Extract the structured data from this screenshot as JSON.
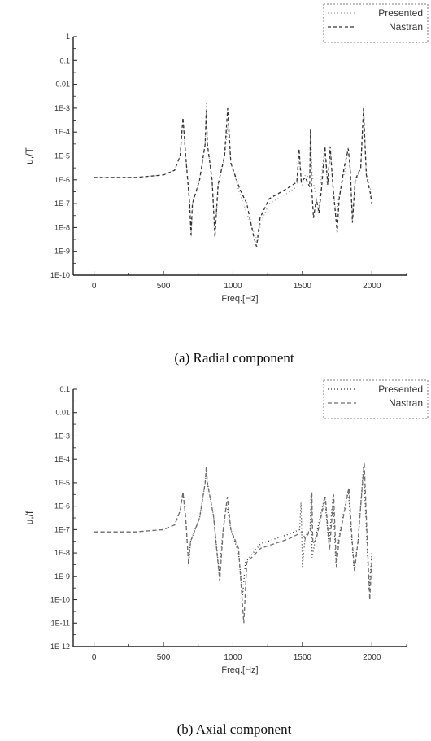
{
  "chart_data": [
    {
      "type": "line",
      "caption": "(a) Radial component",
      "xlabel": "Freq.[Hz]",
      "ylabel": "u,/T",
      "yscale": "log",
      "xlim": [
        -150,
        2250
      ],
      "ylim_exp": [
        -10,
        0
      ],
      "x_ticks": [
        "0",
        "500",
        "1000",
        "1500",
        "2000"
      ],
      "x_tick_values": [
        0,
        500,
        1000,
        1500,
        2000
      ],
      "y_ticks": [
        "1",
        "0.1",
        "0.01",
        "1E-3",
        "1E-4",
        "1E-5",
        "1E-6",
        "1E-7",
        "1E-8",
        "1E-9",
        "1E-10"
      ],
      "legend_position": "top-right",
      "series": [
        {
          "name": "Presented",
          "dash": "1,3",
          "color": "#9a9a9a",
          "points": [
            [
              0,
              -5.9
            ],
            [
              300,
              -5.9
            ],
            [
              500,
              -5.8
            ],
            [
              580,
              -5.6
            ],
            [
              620,
              -5.0
            ],
            [
              640,
              -3.5
            ],
            [
              660,
              -5.0
            ],
            [
              690,
              -7.0
            ],
            [
              700,
              -8.4
            ],
            [
              710,
              -7.0
            ],
            [
              760,
              -6.0
            ],
            [
              800,
              -4.5
            ],
            [
              808,
              -2.8
            ],
            [
              816,
              -4.5
            ],
            [
              850,
              -6.0
            ],
            [
              872,
              -8.3
            ],
            [
              895,
              -6.2
            ],
            [
              940,
              -5.0
            ],
            [
              962,
              -3.8
            ],
            [
              985,
              -5.3
            ],
            [
              1050,
              -6.6
            ],
            [
              1100,
              -7.4
            ],
            [
              1150,
              -8.2
            ],
            [
              1180,
              -8.6
            ],
            [
              1200,
              -7.8
            ],
            [
              1260,
              -7.0
            ],
            [
              1380,
              -6.6
            ],
            [
              1460,
              -6.3
            ],
            [
              1478,
              -4.9
            ],
            [
              1495,
              -6.3
            ],
            [
              1520,
              -5.8
            ],
            [
              1552,
              -5.9
            ],
            [
              1560,
              -4.0
            ],
            [
              1570,
              -5.8
            ],
            [
              1600,
              -6.8
            ],
            [
              1615,
              -7.4
            ],
            [
              1630,
              -6.2
            ],
            [
              1660,
              -4.6
            ],
            [
              1680,
              -6.3
            ],
            [
              1700,
              -4.8
            ],
            [
              1720,
              -6.3
            ],
            [
              1745,
              -7.6
            ],
            [
              1760,
              -6.8
            ],
            [
              1800,
              -5.8
            ],
            [
              1830,
              -4.6
            ],
            [
              1845,
              -5.6
            ],
            [
              1860,
              -7.5
            ],
            [
              1880,
              -6.1
            ],
            [
              1920,
              -5.5
            ],
            [
              1940,
              -3.3
            ],
            [
              1960,
              -5.8
            ],
            [
              1990,
              -6.4
            ],
            [
              2000,
              -7.0
            ]
          ]
        },
        {
          "name": "Nastran",
          "dash": "4,3",
          "color": "#333333",
          "points": [
            [
              0,
              -5.9
            ],
            [
              300,
              -5.9
            ],
            [
              500,
              -5.8
            ],
            [
              580,
              -5.6
            ],
            [
              620,
              -5.0
            ],
            [
              640,
              -3.4
            ],
            [
              660,
              -5.0
            ],
            [
              688,
              -7.0
            ],
            [
              698,
              -8.3
            ],
            [
              708,
              -7.0
            ],
            [
              760,
              -6.0
            ],
            [
              800,
              -4.5
            ],
            [
              808,
              -3.1
            ],
            [
              816,
              -4.5
            ],
            [
              850,
              -6.0
            ],
            [
              870,
              -8.4
            ],
            [
              893,
              -6.2
            ],
            [
              940,
              -5.0
            ],
            [
              962,
              -3.0
            ],
            [
              985,
              -5.3
            ],
            [
              1050,
              -6.4
            ],
            [
              1100,
              -7.0
            ],
            [
              1150,
              -8.4
            ],
            [
              1170,
              -8.8
            ],
            [
              1195,
              -7.6
            ],
            [
              1260,
              -6.8
            ],
            [
              1380,
              -6.4
            ],
            [
              1460,
              -6.1
            ],
            [
              1476,
              -4.7
            ],
            [
              1492,
              -6.1
            ],
            [
              1520,
              -5.9
            ],
            [
              1552,
              -6.3
            ],
            [
              1558,
              -3.9
            ],
            [
              1566,
              -6.2
            ],
            [
              1580,
              -7.6
            ],
            [
              1600,
              -6.8
            ],
            [
              1620,
              -7.4
            ],
            [
              1640,
              -6.2
            ],
            [
              1662,
              -4.6
            ],
            [
              1682,
              -6.2
            ],
            [
              1700,
              -4.6
            ],
            [
              1720,
              -6.3
            ],
            [
              1750,
              -8.2
            ],
            [
              1765,
              -6.8
            ],
            [
              1800,
              -5.5
            ],
            [
              1830,
              -4.7
            ],
            [
              1845,
              -5.6
            ],
            [
              1860,
              -7.8
            ],
            [
              1880,
              -6.0
            ],
            [
              1920,
              -5.5
            ],
            [
              1940,
              -3.0
            ],
            [
              1960,
              -5.8
            ],
            [
              1990,
              -6.6
            ],
            [
              2000,
              -7.0
            ]
          ]
        }
      ]
    },
    {
      "type": "line",
      "caption": "(b) Axial component",
      "xlabel": "Freq.[Hz]",
      "ylabel": "u,/f",
      "yscale": "log",
      "xlim": [
        -150,
        2250
      ],
      "ylim_exp": [
        -12,
        -1
      ],
      "x_ticks": [
        "0",
        "500",
        "1000",
        "1500",
        "2000"
      ],
      "x_tick_values": [
        0,
        500,
        1000,
        1500,
        2000
      ],
      "y_ticks": [
        "0.1",
        "0.01",
        "1E-3",
        "1E-4",
        "1E-5",
        "1E-6",
        "1E-7",
        "1E-8",
        "1E-9",
        "1E-10",
        "1E-11",
        "1E-12"
      ],
      "legend_position": "top-right",
      "series": [
        {
          "name": "Presented",
          "dash": "1,3",
          "color": "#333333",
          "points": [
            [
              0,
              -7.1
            ],
            [
              300,
              -7.1
            ],
            [
              500,
              -7.0
            ],
            [
              580,
              -6.8
            ],
            [
              620,
              -6.2
            ],
            [
              640,
              -5.4
            ],
            [
              660,
              -6.5
            ],
            [
              680,
              -8.5
            ],
            [
              695,
              -7.5
            ],
            [
              760,
              -6.5
            ],
            [
              800,
              -5.0
            ],
            [
              808,
              -4.5
            ],
            [
              816,
              -5.0
            ],
            [
              860,
              -6.4
            ],
            [
              900,
              -8.8
            ],
            [
              930,
              -7.0
            ],
            [
              955,
              -5.9
            ],
            [
              985,
              -7.0
            ],
            [
              1040,
              -8.0
            ],
            [
              1070,
              -9.8
            ],
            [
              1090,
              -8.4
            ],
            [
              1200,
              -7.6
            ],
            [
              1400,
              -7.2
            ],
            [
              1480,
              -7.0
            ],
            [
              1490,
              -5.8
            ],
            [
              1500,
              -8.6
            ],
            [
              1520,
              -7.3
            ],
            [
              1555,
              -7.0
            ],
            [
              1562,
              -5.5
            ],
            [
              1570,
              -8.2
            ],
            [
              1600,
              -7.2
            ],
            [
              1660,
              -5.6
            ],
            [
              1690,
              -7.6
            ],
            [
              1720,
              -5.6
            ],
            [
              1740,
              -8.4
            ],
            [
              1760,
              -7.4
            ],
            [
              1830,
              -5.3
            ],
            [
              1850,
              -7.0
            ],
            [
              1870,
              -8.6
            ],
            [
              1900,
              -7.6
            ],
            [
              1940,
              -4.3
            ],
            [
              1960,
              -7.0
            ],
            [
              1980,
              -9.6
            ],
            [
              2000,
              -8.0
            ]
          ]
        },
        {
          "name": "Nastran",
          "dash": "5,3",
          "color": "#6e6e6e",
          "points": [
            [
              0,
              -7.1
            ],
            [
              300,
              -7.1
            ],
            [
              500,
              -7.0
            ],
            [
              580,
              -6.8
            ],
            [
              620,
              -6.2
            ],
            [
              640,
              -5.4
            ],
            [
              660,
              -6.5
            ],
            [
              680,
              -8.4
            ],
            [
              695,
              -7.5
            ],
            [
              760,
              -6.5
            ],
            [
              800,
              -5.0
            ],
            [
              808,
              -4.3
            ],
            [
              816,
              -5.0
            ],
            [
              860,
              -6.4
            ],
            [
              905,
              -9.2
            ],
            [
              930,
              -7.0
            ],
            [
              960,
              -5.6
            ],
            [
              985,
              -7.0
            ],
            [
              1040,
              -7.8
            ],
            [
              1078,
              -11.0
            ],
            [
              1100,
              -8.4
            ],
            [
              1200,
              -7.8
            ],
            [
              1400,
              -7.4
            ],
            [
              1500,
              -7.1
            ],
            [
              1520,
              -7.4
            ],
            [
              1560,
              -7.0
            ],
            [
              1568,
              -5.4
            ],
            [
              1575,
              -7.6
            ],
            [
              1600,
              -7.4
            ],
            [
              1665,
              -5.6
            ],
            [
              1695,
              -7.9
            ],
            [
              1725,
              -5.5
            ],
            [
              1745,
              -8.6
            ],
            [
              1765,
              -7.4
            ],
            [
              1835,
              -5.2
            ],
            [
              1855,
              -7.2
            ],
            [
              1875,
              -8.8
            ],
            [
              1900,
              -7.5
            ],
            [
              1945,
              -4.1
            ],
            [
              1965,
              -7.2
            ],
            [
              1985,
              -10.0
            ],
            [
              2000,
              -8.2
            ]
          ]
        }
      ]
    }
  ]
}
